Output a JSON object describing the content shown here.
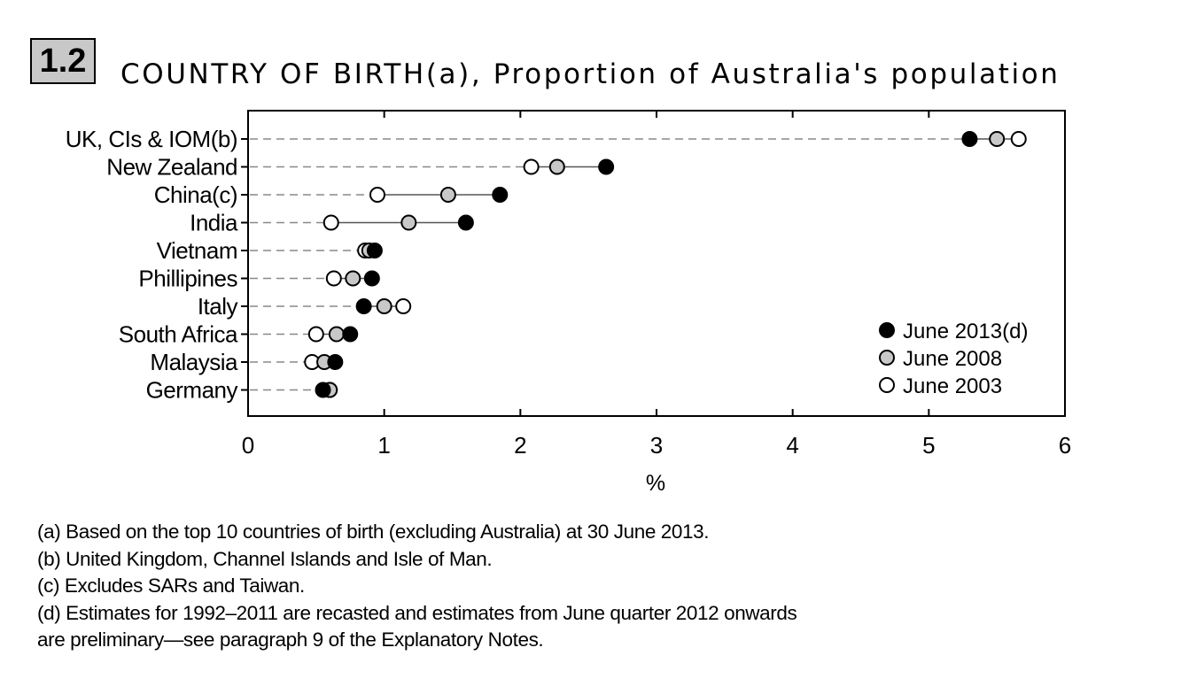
{
  "badge": "1.2",
  "title": "COUNTRY OF BIRTH(a), Proportion of Australia's population",
  "chart_data": {
    "type": "scatter",
    "orientation": "horizontal-dot-plot",
    "title": "COUNTRY OF BIRTH(a), Proportion of Australia's population",
    "xlabel": "%",
    "ylabel": "",
    "xlim": [
      0,
      6
    ],
    "xticks": [
      "0",
      "1",
      "2",
      "3",
      "4",
      "5",
      "6"
    ],
    "categories": [
      "UK, CIs & IOM(b)",
      "New Zealand",
      "China(c)",
      "India",
      "Vietnam",
      "Phillipines",
      "Italy",
      "South Africa",
      "Malaysia",
      "Germany"
    ],
    "series": [
      {
        "name": "June 2003",
        "marker": "open",
        "color": "#ffffff",
        "values": [
          5.66,
          2.08,
          0.95,
          0.61,
          0.86,
          0.63,
          1.14,
          0.5,
          0.47,
          0.6
        ]
      },
      {
        "name": "June 2008",
        "marker": "grey",
        "color": "#c8c8c8",
        "values": [
          5.5,
          2.27,
          1.47,
          1.18,
          0.89,
          0.77,
          1.0,
          0.65,
          0.56,
          0.6
        ]
      },
      {
        "name": "June 2013(d)",
        "marker": "filled",
        "color": "#000000",
        "values": [
          5.3,
          2.63,
          1.85,
          1.6,
          0.93,
          0.91,
          0.85,
          0.75,
          0.64,
          0.55
        ]
      }
    ],
    "legend": [
      "June 2013(d)",
      "June 2008",
      "June 2003"
    ],
    "legend_position": "bottom-right"
  },
  "notes": [
    "(a) Based on the top 10 countries of birth (excluding Australia) at 30 June 2013.",
    "(b) United Kingdom, Channel Islands and Isle of Man.",
    "(c) Excludes SARs and Taiwan.",
    "(d) Estimates for 1992–2011 are recasted and estimates from June quarter 2012 onwards",
    "are preliminary—see paragraph 9 of the Explanatory Notes."
  ]
}
